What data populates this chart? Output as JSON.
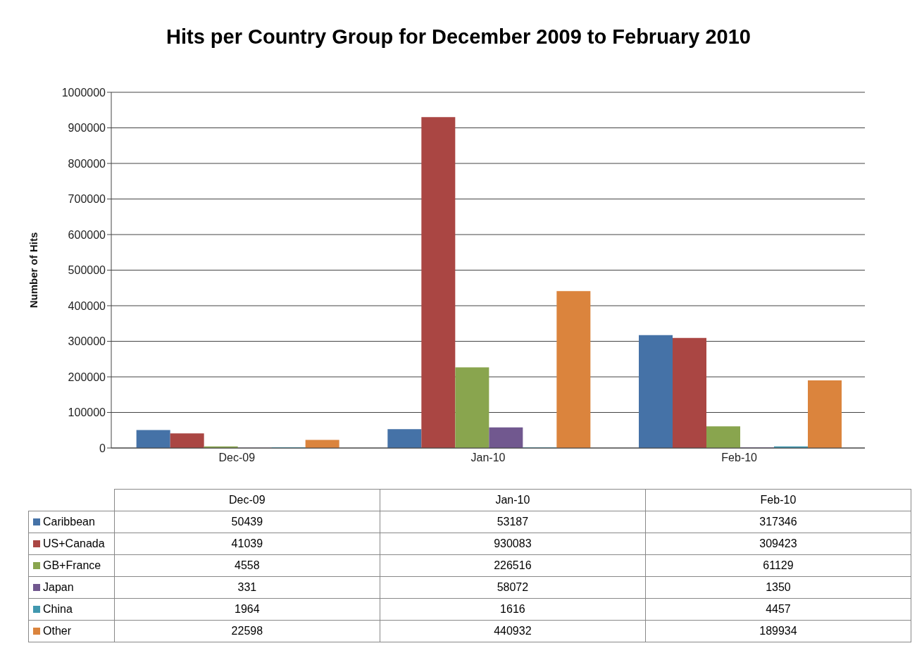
{
  "chart_data": {
    "type": "bar",
    "title": "Hits per Country Group for December 2009 to February 2010",
    "ylabel": "Number of Hits",
    "categories": [
      "Dec-09",
      "Jan-10",
      "Feb-10"
    ],
    "series": [
      {
        "name": "Caribbean",
        "color": "#4572a7",
        "values": [
          50439,
          53187,
          317346
        ]
      },
      {
        "name": "US+Canada",
        "color": "#aa4643",
        "values": [
          41039,
          930083,
          309423
        ]
      },
      {
        "name": "GB+France",
        "color": "#89a54e",
        "values": [
          4558,
          226516,
          61129
        ]
      },
      {
        "name": "Japan",
        "color": "#71588f",
        "values": [
          331,
          58072,
          1350
        ]
      },
      {
        "name": "China",
        "color": "#4198af",
        "values": [
          1964,
          1616,
          4457
        ]
      },
      {
        "name": "Other",
        "color": "#db843d",
        "values": [
          22598,
          440932,
          189934
        ]
      }
    ],
    "ylim": [
      0,
      1000000
    ],
    "yticks": [
      0,
      100000,
      200000,
      300000,
      400000,
      500000,
      600000,
      700000,
      800000,
      900000,
      1000000
    ],
    "grid": "y",
    "legend": "bottom",
    "data_labels": true
  }
}
